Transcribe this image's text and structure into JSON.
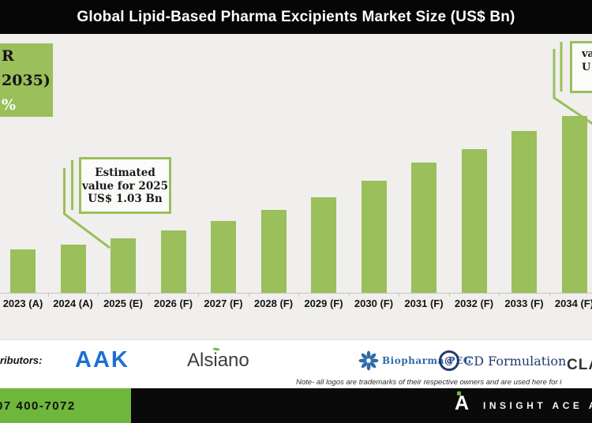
{
  "page": {
    "background": "#F0EFED",
    "accent_green": "#9ABF5B",
    "footer_green": "#6FB63D",
    "title_bar_color": "#060606"
  },
  "title_bar": {
    "text": "Global Lipid-Based Pharma Excipients Market Size (US$ Bn)"
  },
  "cagr_box": {
    "visible_line1": "R",
    "visible_line2": "2035)",
    "visible_line3": "%"
  },
  "callouts": {
    "estimate_2025": {
      "line1": "Estimated",
      "line2": "value for 2025",
      "line3": "US$ 1.03 Bn"
    },
    "estimate_2035_visible": {
      "line1": "",
      "line2": "va",
      "line3": "U"
    }
  },
  "chart_data": {
    "type": "bar",
    "title": "Global Lipid-Based Pharma Excipients Market Size (US$ Bn)",
    "unit": "US$ Bn",
    "categories": [
      "2023 (A)",
      "2024 (A)",
      "2025 (E)",
      "2026 (F)",
      "2027 (F)",
      "2028 (F)",
      "2029 (F)",
      "2030 (F)",
      "2031 (F)",
      "2032 (F)",
      "2033 (F)",
      "2034 (F)"
    ],
    "values": [
      0.82,
      0.91,
      1.03,
      1.18,
      1.36,
      1.57,
      1.81,
      2.12,
      2.46,
      2.72,
      3.06,
      3.34
    ],
    "labeled_values": {
      "2025 (E)": 1.03
    },
    "annotations": [
      "Estimated value for 2025 US$ 1.03 Bn"
    ],
    "bar_color": "#9ABF5B",
    "legend": false,
    "gridlines": false,
    "ylim": [
      0,
      3.6
    ]
  },
  "contributors": {
    "label_visible": "ributors:",
    "logos": [
      {
        "name": "AAK",
        "color": "#1D6FD3"
      },
      {
        "name": "Alsiano",
        "color": "#3E3E3E"
      },
      {
        "name": "Biopharma PEG",
        "color": "#2E6CA8"
      },
      {
        "name": "CD Formulation",
        "color": "#233A6E"
      },
      {
        "name": "CLA",
        "color": "#333333"
      }
    ],
    "cd_icon_glyph": "@",
    "note_visible": "Note- all logos are trademarks of their respective owners and are used here for i"
  },
  "footer": {
    "phone_visible": "07 400-7072",
    "brand_monogram": "A",
    "brand_visible": "INSIGHT ACE A"
  }
}
